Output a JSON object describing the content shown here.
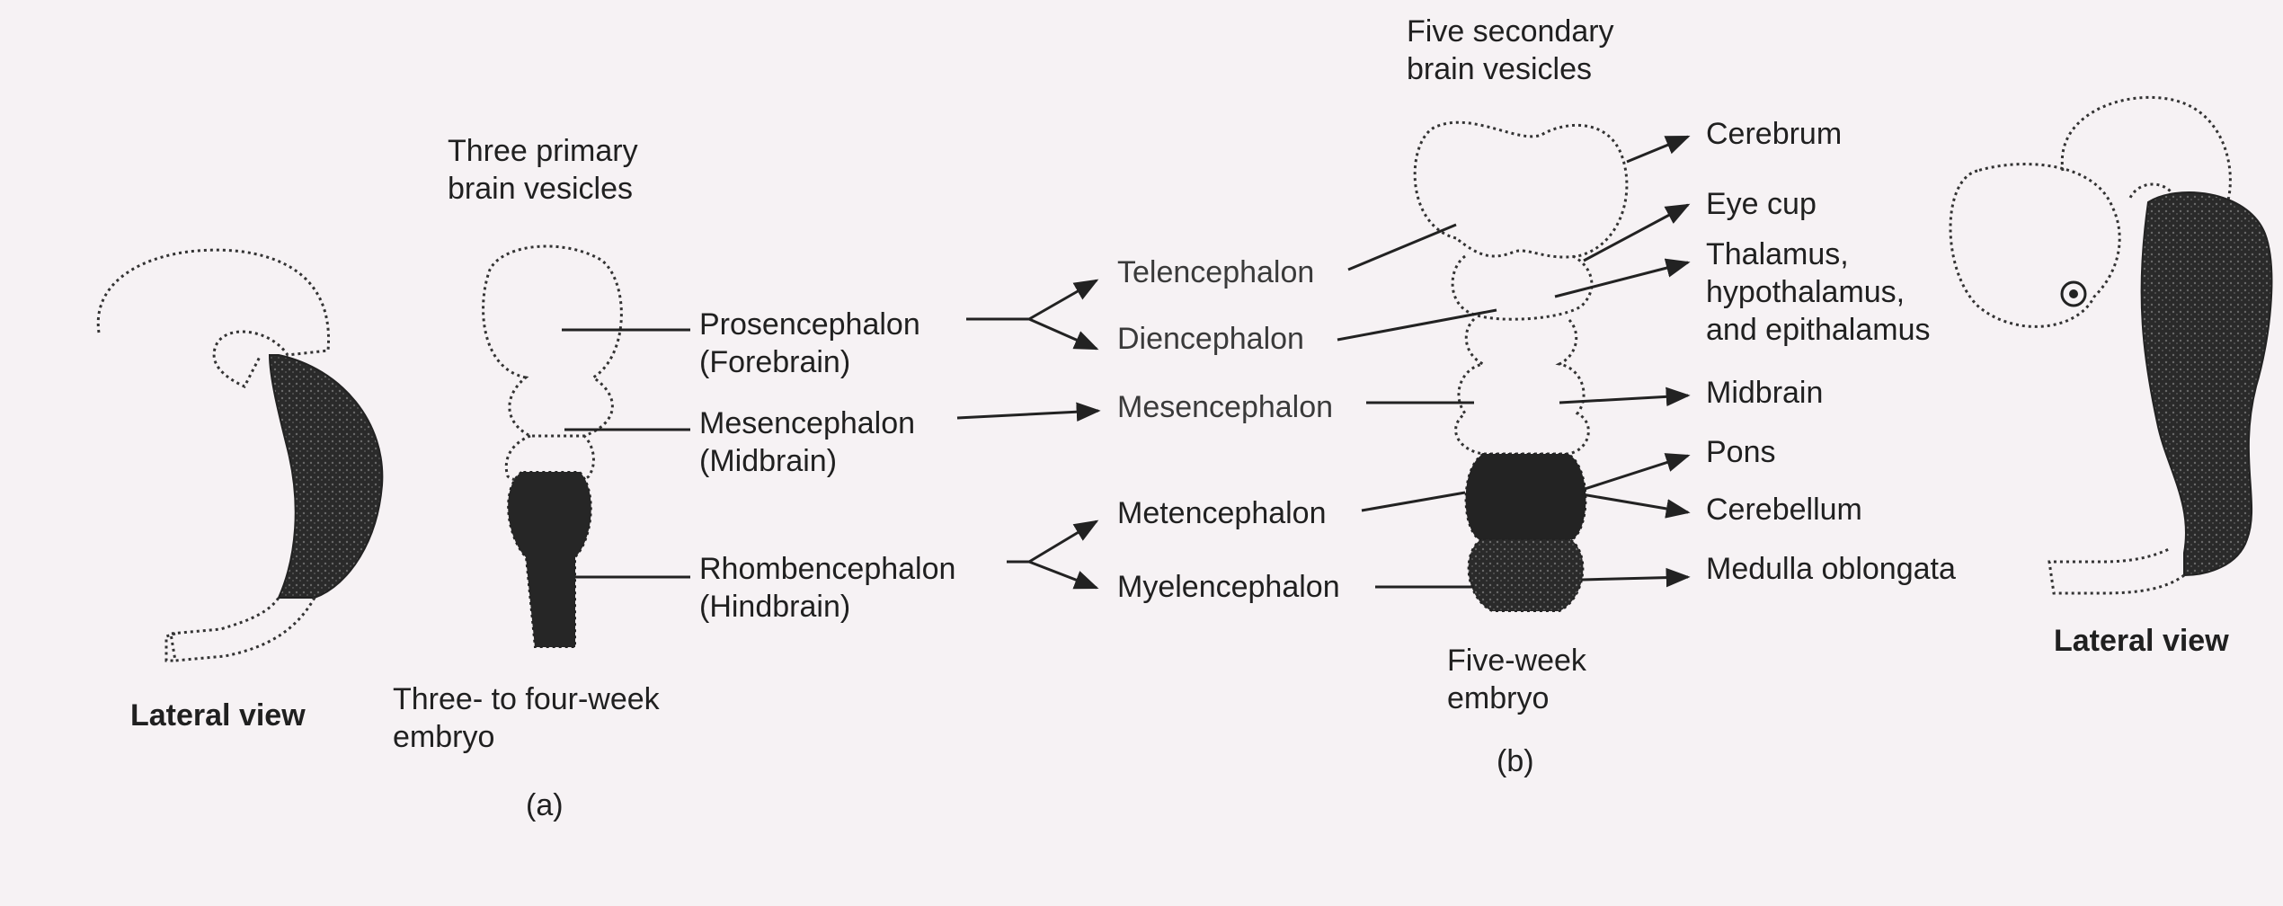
{
  "panel_a": {
    "lateral_view": "Lateral view",
    "heading_line1": "Three primary",
    "heading_line2": "brain vesicles",
    "embryo_line1": "Three- to four-week",
    "embryo_line2": "embryo",
    "caption": "(a)",
    "vesicles": [
      {
        "name": "Prosencephalon",
        "alt": "(Forebrain)"
      },
      {
        "name": "Mesencephalon",
        "alt": "(Midbrain)"
      },
      {
        "name": "Rhombencephalon",
        "alt": "(Hindbrain)"
      }
    ]
  },
  "middle": {
    "secondary": [
      "Telencephalon",
      "Diencephalon",
      "Mesencephalon",
      "Metencephalon",
      "Myelencephalon"
    ]
  },
  "panel_b": {
    "heading_line1": "Five secondary",
    "heading_line2": "brain vesicles",
    "embryo_line1": "Five-week",
    "embryo_line2": "embryo",
    "caption": "(b)",
    "lateral_view": "Lateral view",
    "structures": {
      "cerebrum": "Cerebrum",
      "eye_cup": "Eye cup",
      "thalamus_line1": "Thalamus,",
      "thalamus_line2": "hypothalamus,",
      "thalamus_line3": "and epithalamus",
      "midbrain": "Midbrain",
      "pons": "Pons",
      "cerebellum": "Cerebellum",
      "medulla": "Medulla oblongata"
    }
  }
}
